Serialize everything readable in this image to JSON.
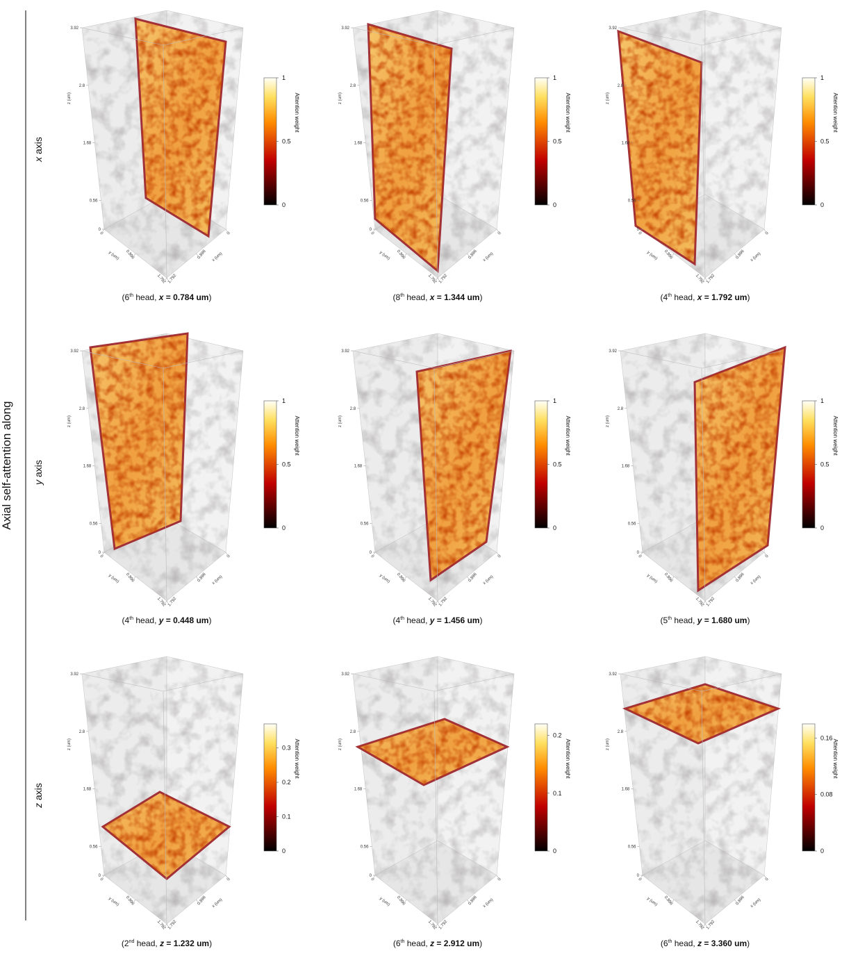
{
  "side_label": "Axial self-attention along",
  "axes": {
    "z": {
      "title": "z (um)",
      "lim": [
        0,
        3.92
      ],
      "ticks": [
        0,
        0.56,
        1.68,
        2.8,
        3.92
      ]
    },
    "y": {
      "title": "y (um)",
      "lim": [
        0,
        1.792
      ],
      "ticks": [
        0,
        0.896,
        1.792
      ]
    },
    "x": {
      "title": "x (um)",
      "lim": [
        0,
        1.792
      ],
      "ticks": [
        0,
        0.896,
        1.792
      ]
    }
  },
  "colorbar_title": "Attention weight",
  "rows": [
    {
      "var": "x",
      "label": " axis",
      "panels": [
        {
          "caption": {
            "open": "(",
            "head": "6",
            "sup": "th",
            "mid": " head, ",
            "var": "x",
            "val": " = 0.784 um",
            "close": ")"
          },
          "cbar": {
            "lim": [
              0,
              1
            ],
            "ticks": [
              0,
              0.5,
              1
            ]
          }
        },
        {
          "caption": {
            "open": "(",
            "head": "8",
            "sup": "th",
            "mid": " head, ",
            "var": "x",
            "val": " = 1.344 um",
            "close": ")"
          },
          "cbar": {
            "lim": [
              0,
              1
            ],
            "ticks": [
              0,
              0.5,
              1
            ]
          }
        },
        {
          "caption": {
            "open": "(",
            "head": "4",
            "sup": "th",
            "mid": " head, ",
            "var": "x",
            "val": " = 1.792 um",
            "close": ")"
          },
          "cbar": {
            "lim": [
              0,
              1
            ],
            "ticks": [
              0,
              0.5,
              1
            ]
          }
        }
      ]
    },
    {
      "var": "y",
      "label": " axis",
      "panels": [
        {
          "caption": {
            "open": "(",
            "head": "4",
            "sup": "th",
            "mid": " head, ",
            "var": "y",
            "val": " = 0.448 um",
            "close": ")"
          },
          "cbar": {
            "lim": [
              0,
              1
            ],
            "ticks": [
              0,
              0.5,
              1
            ]
          }
        },
        {
          "caption": {
            "open": "(",
            "head": "4",
            "sup": "th",
            "mid": " head, ",
            "var": "y",
            "val": " = 1.456 um",
            "close": ")"
          },
          "cbar": {
            "lim": [
              0,
              1
            ],
            "ticks": [
              0,
              0.5,
              1
            ]
          }
        },
        {
          "caption": {
            "open": "(",
            "head": "5",
            "sup": "th",
            "mid": " head, ",
            "var": "y",
            "val": " = 1.680 um",
            "close": ")"
          },
          "cbar": {
            "lim": [
              0,
              1
            ],
            "ticks": [
              0,
              0.5,
              1
            ]
          }
        }
      ]
    },
    {
      "var": "z",
      "label": " axis",
      "panels": [
        {
          "caption": {
            "open": "(",
            "head": "2",
            "sup": "nd",
            "mid": " head, ",
            "var": "z",
            "val": " = 1.232 um",
            "close": ")"
          },
          "cbar": {
            "lim": [
              0,
              0.37
            ],
            "ticks": [
              0,
              0.1,
              0.2,
              0.3
            ]
          }
        },
        {
          "caption": {
            "open": "(",
            "head": "6",
            "sup": "th",
            "mid": " head, ",
            "var": "z",
            "val": " = 2.912 um",
            "close": ")"
          },
          "cbar": {
            "lim": [
              0,
              0.22
            ],
            "ticks": [
              0,
              0.1,
              0.2
            ]
          }
        },
        {
          "caption": {
            "open": "(",
            "head": "6",
            "sup": "th",
            "mid": " head, ",
            "var": "z",
            "val": " = 3.360 um",
            "close": ")"
          },
          "cbar": {
            "lim": [
              0,
              0.18
            ],
            "ticks": [
              0,
              0.08,
              0.16
            ]
          }
        }
      ]
    }
  ]
}
